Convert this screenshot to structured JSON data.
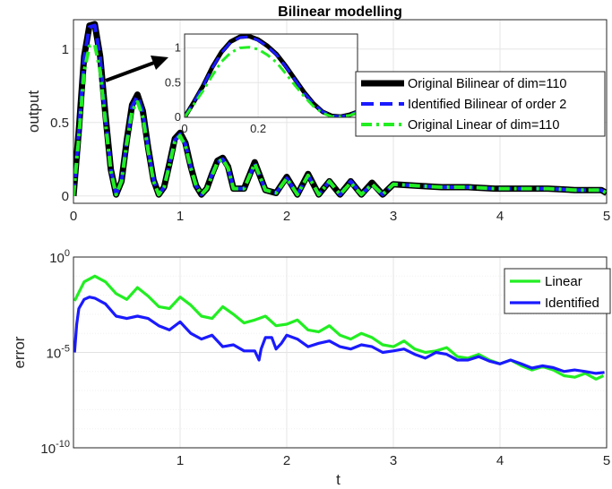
{
  "chart_data": [
    {
      "type": "line",
      "title": "Bilinear modelling",
      "xlabel": "",
      "ylabel": "output",
      "xlim": [
        0,
        5
      ],
      "ylim": [
        -0.05,
        1.2
      ],
      "xticks": [
        0,
        1,
        2,
        3,
        4,
        5
      ],
      "xtick_labels": [
        "0",
        "1",
        "2",
        "3",
        "4",
        "5"
      ],
      "yticks": [
        0,
        0.5,
        1
      ],
      "ytick_labels": [
        "0",
        "0.5",
        "1"
      ],
      "grid": true,
      "legend_position": "right",
      "series": [
        {
          "name": "Original Bilinear of dim=110",
          "color": "#000000",
          "style": "solid",
          "x": [
            0,
            0.05,
            0.1,
            0.15,
            0.2,
            0.25,
            0.3,
            0.35,
            0.4,
            0.45,
            0.5,
            0.55,
            0.6,
            0.65,
            0.7,
            0.75,
            0.8,
            0.85,
            0.9,
            0.95,
            1.0,
            1.05,
            1.1,
            1.15,
            1.2,
            1.25,
            1.3,
            1.35,
            1.4,
            1.45,
            1.5,
            1.6,
            1.7,
            1.8,
            1.9,
            2.0,
            2.1,
            2.2,
            2.3,
            2.4,
            2.5,
            2.6,
            2.7,
            2.8,
            2.9,
            3.0,
            3.2,
            3.45,
            3.7,
            3.95,
            4.2,
            4.45,
            4.7,
            4.95,
            5.0
          ],
          "y": [
            0.0,
            0.45,
            0.95,
            1.16,
            1.17,
            0.95,
            0.55,
            0.18,
            0.01,
            0.1,
            0.38,
            0.62,
            0.69,
            0.58,
            0.33,
            0.11,
            0.01,
            0.06,
            0.22,
            0.39,
            0.43,
            0.36,
            0.2,
            0.07,
            0.01,
            0.05,
            0.15,
            0.24,
            0.26,
            0.2,
            0.05,
            0.05,
            0.23,
            0.04,
            0.02,
            0.13,
            0.01,
            0.15,
            0.01,
            0.1,
            0.01,
            0.1,
            0.01,
            0.09,
            0.01,
            0.08,
            0.07,
            0.06,
            0.06,
            0.05,
            0.05,
            0.05,
            0.04,
            0.04,
            0.02
          ]
        },
        {
          "name": "Identified Bilinear of order 2",
          "color": "#1a1aff",
          "style": "dashed",
          "x": [
            0,
            0.05,
            0.1,
            0.15,
            0.2,
            0.25,
            0.3,
            0.35,
            0.4,
            0.45,
            0.5,
            0.55,
            0.6,
            0.65,
            0.7,
            0.75,
            0.8,
            0.85,
            0.9,
            0.95,
            1.0,
            1.05,
            1.1,
            1.15,
            1.2,
            1.25,
            1.3,
            1.35,
            1.4,
            1.45,
            1.5,
            1.6,
            1.7,
            1.8,
            1.9,
            2.0,
            2.1,
            2.2,
            2.3,
            2.4,
            2.5,
            2.6,
            2.7,
            2.8,
            2.9,
            3.0,
            3.2,
            3.45,
            3.7,
            3.95,
            4.2,
            4.45,
            4.7,
            4.95,
            5.0
          ],
          "y": [
            0.0,
            0.44,
            0.94,
            1.15,
            1.16,
            0.94,
            0.54,
            0.18,
            0.01,
            0.1,
            0.38,
            0.61,
            0.68,
            0.57,
            0.33,
            0.11,
            0.01,
            0.06,
            0.22,
            0.38,
            0.42,
            0.35,
            0.2,
            0.07,
            0.01,
            0.05,
            0.15,
            0.23,
            0.25,
            0.19,
            0.05,
            0.05,
            0.22,
            0.04,
            0.02,
            0.12,
            0.01,
            0.14,
            0.01,
            0.1,
            0.01,
            0.1,
            0.01,
            0.08,
            0.01,
            0.08,
            0.07,
            0.06,
            0.06,
            0.05,
            0.05,
            0.05,
            0.04,
            0.04,
            0.02
          ]
        },
        {
          "name": "Original Linear of dim=110",
          "color": "#22ee22",
          "style": "dashdot",
          "x": [
            0,
            0.05,
            0.1,
            0.15,
            0.2,
            0.25,
            0.3,
            0.35,
            0.4,
            0.45,
            0.5,
            0.55,
            0.6,
            0.65,
            0.7,
            0.75,
            0.8,
            0.85,
            0.9,
            0.95,
            1.0,
            1.05,
            1.1,
            1.15,
            1.2,
            1.25,
            1.3,
            1.35,
            1.4,
            1.45,
            1.5,
            1.6,
            1.7,
            1.8,
            1.9,
            2.0,
            2.1,
            2.2,
            2.3,
            2.4,
            2.5,
            2.6,
            2.7,
            2.8,
            2.9,
            3.0,
            3.2,
            3.45,
            3.7,
            3.95,
            4.2,
            4.45,
            4.7,
            4.95,
            5.0
          ],
          "y": [
            0.0,
            0.4,
            0.85,
            1.02,
            1.03,
            0.85,
            0.5,
            0.17,
            0.01,
            0.1,
            0.36,
            0.58,
            0.64,
            0.54,
            0.31,
            0.1,
            0.01,
            0.06,
            0.21,
            0.37,
            0.41,
            0.34,
            0.19,
            0.07,
            0.01,
            0.05,
            0.14,
            0.23,
            0.25,
            0.19,
            0.05,
            0.05,
            0.22,
            0.04,
            0.02,
            0.12,
            0.01,
            0.14,
            0.01,
            0.1,
            0.01,
            0.09,
            0.01,
            0.08,
            0.01,
            0.08,
            0.07,
            0.06,
            0.06,
            0.05,
            0.05,
            0.05,
            0.04,
            0.04,
            0.02
          ]
        }
      ]
    },
    {
      "type": "line",
      "title": "",
      "subtitle": "inset (zoom)",
      "xlabel": "",
      "ylabel": "",
      "xlim": [
        0,
        0.47
      ],
      "ylim": [
        0,
        1.2
      ],
      "xticks": [
        0,
        0.2
      ],
      "xtick_labels": [
        "0",
        "0.2"
      ],
      "yticks": [
        0,
        0.5,
        1
      ],
      "ytick_labels": [
        "0",
        "0.5",
        "1"
      ],
      "grid": true,
      "series": [
        {
          "name": "Original Bilinear of dim=110",
          "color": "#000000",
          "style": "solid",
          "x": [
            0,
            0.025,
            0.05,
            0.075,
            0.1,
            0.125,
            0.15,
            0.175,
            0.2,
            0.225,
            0.25,
            0.275,
            0.3,
            0.325,
            0.35,
            0.375,
            0.4,
            0.425,
            0.45,
            0.47
          ],
          "y": [
            0.0,
            0.22,
            0.45,
            0.72,
            0.94,
            1.09,
            1.16,
            1.17,
            1.12,
            1.03,
            0.91,
            0.74,
            0.55,
            0.36,
            0.2,
            0.08,
            0.02,
            0.01,
            0.04,
            0.08
          ]
        },
        {
          "name": "Identified Bilinear of order 2",
          "color": "#1a1aff",
          "style": "dashed",
          "x": [
            0,
            0.025,
            0.05,
            0.075,
            0.1,
            0.125,
            0.15,
            0.175,
            0.2,
            0.225,
            0.25,
            0.275,
            0.3,
            0.325,
            0.35,
            0.375,
            0.4,
            0.425,
            0.45,
            0.47
          ],
          "y": [
            0.0,
            0.22,
            0.45,
            0.71,
            0.93,
            1.08,
            1.15,
            1.16,
            1.11,
            1.02,
            0.9,
            0.73,
            0.54,
            0.35,
            0.2,
            0.08,
            0.02,
            0.01,
            0.04,
            0.08
          ]
        },
        {
          "name": "Original Linear of dim=110",
          "color": "#22ee22",
          "style": "dashdot",
          "x": [
            0,
            0.025,
            0.05,
            0.075,
            0.1,
            0.125,
            0.15,
            0.175,
            0.2,
            0.225,
            0.25,
            0.275,
            0.3,
            0.325,
            0.35,
            0.375,
            0.4,
            0.425,
            0.45,
            0.47
          ],
          "y": [
            0.0,
            0.19,
            0.38,
            0.6,
            0.8,
            0.93,
            1.0,
            1.01,
            0.98,
            0.9,
            0.79,
            0.63,
            0.46,
            0.3,
            0.16,
            0.06,
            0.01,
            0.01,
            0.03,
            0.07
          ]
        }
      ]
    },
    {
      "type": "line",
      "title": "",
      "xlabel": "t",
      "ylabel": "error",
      "xlim": [
        0,
        5
      ],
      "ylim": [
        1e-10,
        1
      ],
      "yscale": "log",
      "xticks": [
        1,
        2,
        3,
        4,
        5
      ],
      "xtick_labels": [
        "1",
        "2",
        "3",
        "4",
        "5"
      ],
      "yticks": [
        1e-10,
        1e-05,
        1
      ],
      "ytick_labels": [
        "10^-10",
        "10^-5",
        "10^0"
      ],
      "grid": true,
      "legend_position": "top-right",
      "series": [
        {
          "name": "Linear",
          "color": "#22ee22",
          "x": [
            0.01,
            0.1,
            0.2,
            0.3,
            0.4,
            0.5,
            0.6,
            0.7,
            0.8,
            0.9,
            1.0,
            1.1,
            1.2,
            1.3,
            1.4,
            1.5,
            1.6,
            1.7,
            1.8,
            1.9,
            2.0,
            2.1,
            2.2,
            2.3,
            2.4,
            2.5,
            2.6,
            2.7,
            2.8,
            2.9,
            3.0,
            3.1,
            3.2,
            3.3,
            3.4,
            3.5,
            3.6,
            3.7,
            3.8,
            3.9,
            4.0,
            4.1,
            4.2,
            4.3,
            4.4,
            4.5,
            4.6,
            4.7,
            4.8,
            4.9,
            4.97
          ],
          "y": [
            0.005,
            0.05,
            0.1,
            0.05,
            0.012,
            0.006,
            0.025,
            0.009,
            0.0025,
            0.002,
            0.008,
            0.003,
            0.0008,
            0.0006,
            0.0025,
            0.001,
            0.00035,
            0.0005,
            0.0008,
            0.00025,
            0.0003,
            0.0005,
            0.00015,
            0.00012,
            0.00025,
            8e-05,
            5e-05,
            0.0001,
            6e-05,
            2.5e-05,
            2e-05,
            4e-05,
            1.5e-05,
            1e-05,
            1.2e-05,
            1.8e-05,
            6e-06,
            5e-06,
            8e-06,
            4e-06,
            2.5e-06,
            4e-06,
            2e-06,
            1.2e-06,
            1.8e-06,
            1.2e-06,
            6e-07,
            5e-07,
            8e-07,
            4e-07,
            6e-07
          ]
        },
        {
          "name": "Identified",
          "color": "#1a1aff",
          "x": [
            0.01,
            0.03,
            0.05,
            0.1,
            0.15,
            0.2,
            0.3,
            0.4,
            0.5,
            0.6,
            0.7,
            0.8,
            0.9,
            1.0,
            1.1,
            1.2,
            1.3,
            1.4,
            1.5,
            1.6,
            1.7,
            1.74,
            1.76,
            1.8,
            1.86,
            1.9,
            1.95,
            2.0,
            2.1,
            2.2,
            2.3,
            2.4,
            2.5,
            2.6,
            2.7,
            2.8,
            2.9,
            3.0,
            3.1,
            3.2,
            3.3,
            3.4,
            3.5,
            3.6,
            3.7,
            3.8,
            3.9,
            4.0,
            4.1,
            4.2,
            4.3,
            4.4,
            4.5,
            4.6,
            4.7,
            4.8,
            4.9,
            4.98
          ],
          "y": [
            1e-05,
            0.0003,
            0.002,
            0.006,
            0.008,
            0.007,
            0.0035,
            0.0008,
            0.0006,
            0.0008,
            0.0006,
            0.00025,
            0.00015,
            0.0004,
            0.0001,
            5e-05,
            8e-05,
            2e-05,
            2.5e-05,
            1.2e-05,
            1.2e-05,
            4e-06,
            1.5e-05,
            6e-05,
            6e-05,
            1.5e-05,
            3e-05,
            8e-05,
            5e-05,
            2e-05,
            3e-05,
            4e-05,
            2e-05,
            1.5e-05,
            2.5e-05,
            2e-05,
            1e-05,
            1.2e-05,
            1.5e-05,
            8e-06,
            5e-06,
            1e-05,
            8e-06,
            4e-06,
            4e-06,
            6e-06,
            3.5e-06,
            2.5e-06,
            4e-06,
            2.5e-06,
            1.5e-06,
            2e-06,
            1.6e-06,
            1e-06,
            1.2e-06,
            1e-06,
            8e-07,
            9e-07
          ]
        }
      ]
    }
  ]
}
